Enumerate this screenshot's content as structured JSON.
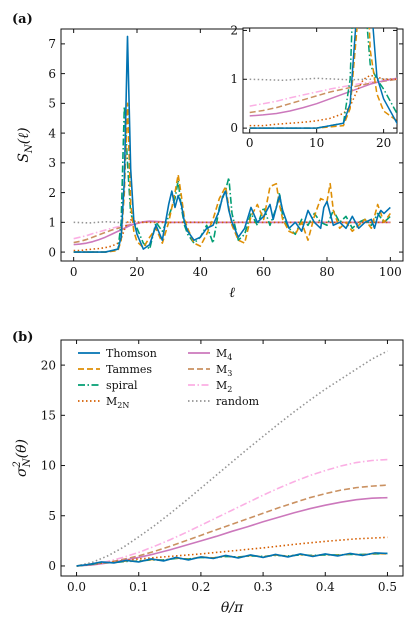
{
  "chart_data": [
    {
      "panel": "(a)",
      "type": "line",
      "xlabel": "ℓ",
      "ylabel": "S_N(ℓ)",
      "xlim": [
        -4,
        104
      ],
      "ylim": [
        -0.3,
        7.5
      ],
      "xticks": [
        "0",
        "20",
        "40",
        "60",
        "80",
        "100"
      ],
      "yticks": [
        "0",
        "1",
        "2",
        "3",
        "4",
        "5",
        "6",
        "7"
      ],
      "series": [
        {
          "name": "Thomson",
          "color": "#0173b2",
          "style": "solid",
          "x": [
            0,
            5,
            10,
            14,
            15,
            16,
            17,
            18,
            19,
            20,
            22,
            24,
            26,
            28,
            30,
            31,
            32,
            33,
            34,
            35,
            36,
            38,
            40,
            42,
            44,
            46,
            47,
            48,
            49,
            50,
            52,
            54,
            56,
            58,
            60,
            62,
            63,
            64,
            65,
            66,
            68,
            70,
            72,
            74,
            76,
            78,
            79,
            80,
            81,
            82,
            84,
            86,
            88,
            90,
            92,
            94,
            95,
            96,
            97,
            98,
            100
          ],
          "y": [
            0,
            0,
            0,
            0.1,
            0.5,
            2.4,
            7.25,
            2.8,
            1.05,
            0.6,
            0.1,
            0.25,
            0.9,
            0.4,
            1.6,
            2.05,
            1.5,
            1.9,
            1.6,
            1.0,
            0.7,
            0.4,
            0.5,
            0.8,
            0.9,
            1.4,
            1.85,
            2.05,
            1.4,
            1.0,
            0.5,
            0.8,
            1.5,
            1.0,
            1.2,
            1.6,
            1.1,
            1.5,
            1.9,
            1.4,
            0.8,
            1.0,
            0.7,
            1.4,
            1.0,
            0.8,
            1.5,
            1.7,
            1.3,
            0.9,
            1.0,
            0.8,
            1.2,
            0.8,
            1.0,
            1.1,
            0.8,
            1.2,
            1.4,
            1.3,
            1.5
          ]
        },
        {
          "name": "Tammes",
          "color": "#de8f05",
          "style": "dashed",
          "x": [
            0,
            5,
            10,
            14,
            15,
            16,
            17,
            18,
            19,
            20,
            22,
            24,
            26,
            28,
            30,
            32,
            33,
            34,
            35,
            36,
            38,
            40,
            42,
            44,
            46,
            48,
            49,
            50,
            52,
            54,
            56,
            58,
            60,
            62,
            64,
            65,
            66,
            68,
            70,
            72,
            74,
            76,
            78,
            80,
            81,
            82,
            84,
            86,
            88,
            90,
            92,
            94,
            96,
            98,
            100
          ],
          "y": [
            0,
            0,
            0,
            0.05,
            0.4,
            2.0,
            5.0,
            1.6,
            0.7,
            0.35,
            0.15,
            0.5,
            0.8,
            0.3,
            1.0,
            2.0,
            2.6,
            1.9,
            1.1,
            0.8,
            0.3,
            0.2,
            0.6,
            1.1,
            1.8,
            2.2,
            1.5,
            0.9,
            0.4,
            0.3,
            1.2,
            1.6,
            1.1,
            2.2,
            2.3,
            1.6,
            1.1,
            0.7,
            0.6,
            1.0,
            0.4,
            1.2,
            1.8,
            1.7,
            2.3,
            1.4,
            0.8,
            1.0,
            0.7,
            0.9,
            1.1,
            0.8,
            1.6,
            1.0,
            1.3
          ]
        },
        {
          "name": "spiral",
          "color": "#029e73",
          "style": "dashdot",
          "x": [
            0,
            5,
            10,
            14,
            15,
            16,
            17,
            18,
            19,
            20,
            22,
            24,
            26,
            28,
            30,
            32,
            33,
            34,
            35,
            36,
            38,
            40,
            42,
            44,
            46,
            48,
            49,
            50,
            52,
            54,
            56,
            58,
            60,
            62,
            64,
            65,
            66,
            68,
            70,
            72,
            74,
            76,
            78,
            80,
            82,
            84,
            86,
            88,
            90,
            92,
            94,
            96,
            98,
            100
          ],
          "y": [
            0,
            0,
            0,
            0.1,
            1.0,
            4.9,
            3.0,
            1.3,
            1.0,
            0.8,
            0.3,
            0.1,
            1.0,
            0.7,
            1.2,
            1.8,
            2.4,
            1.5,
            0.9,
            0.6,
            0.3,
            0.5,
            0.9,
            0.3,
            1.5,
            2.1,
            2.5,
            1.3,
            0.4,
            0.6,
            1.3,
            0.9,
            1.5,
            0.9,
            1.5,
            2.0,
            1.2,
            0.8,
            0.6,
            1.1,
            0.9,
            1.3,
            1.0,
            0.9,
            1.4,
            1.0,
            1.2,
            0.8,
            1.0,
            1.1,
            0.9,
            1.3,
            1.0,
            1.2
          ]
        },
        {
          "name": "M_2N",
          "color": "#d55e00",
          "style": "dotted",
          "x": [
            0,
            2,
            4,
            6,
            8,
            10,
            12,
            14,
            15,
            16,
            17,
            18,
            19,
            20,
            22,
            24,
            26,
            28,
            30,
            35,
            40,
            50,
            60,
            70,
            80,
            90,
            100
          ],
          "y": [
            0.05,
            0.05,
            0.08,
            0.1,
            0.12,
            0.15,
            0.2,
            0.3,
            0.45,
            0.75,
            1.0,
            1.08,
            1.05,
            1.0,
            1.0,
            1.0,
            1.0,
            1.0,
            1.0,
            1.0,
            1.0,
            1.0,
            1.0,
            1.0,
            1.0,
            1.0,
            1.0
          ]
        },
        {
          "name": "M_4",
          "color": "#cc78bc",
          "style": "solid",
          "x": [
            0,
            2,
            4,
            6,
            8,
            10,
            12,
            14,
            16,
            18,
            20,
            22,
            24,
            26,
            28,
            30,
            35,
            40,
            50,
            60,
            70,
            80,
            90,
            100
          ],
          "y": [
            0.25,
            0.27,
            0.3,
            0.35,
            0.42,
            0.5,
            0.6,
            0.7,
            0.8,
            0.9,
            0.97,
            1.02,
            1.04,
            1.03,
            1.02,
            1.0,
            1.0,
            1.0,
            1.0,
            1.0,
            1.0,
            1.0,
            1.0,
            1.0
          ]
        },
        {
          "name": "M_3",
          "color": "#ca9161",
          "style": "dashed",
          "x": [
            0,
            2,
            4,
            6,
            8,
            10,
            12,
            14,
            16,
            18,
            20,
            22,
            24,
            26,
            28,
            30,
            35,
            40,
            50,
            60,
            70,
            80,
            90,
            100
          ],
          "y": [
            0.32,
            0.36,
            0.42,
            0.5,
            0.58,
            0.66,
            0.74,
            0.8,
            0.86,
            0.92,
            0.96,
            1.0,
            1.02,
            1.02,
            1.01,
            1.0,
            1.0,
            1.0,
            1.0,
            1.0,
            1.0,
            1.0,
            1.0,
            1.0
          ]
        },
        {
          "name": "M_2",
          "color": "#fbafe4",
          "style": "dashdot",
          "x": [
            0,
            2,
            4,
            6,
            8,
            10,
            12,
            14,
            16,
            18,
            20,
            22,
            24,
            26,
            28,
            30,
            35,
            40,
            50,
            60,
            70,
            80,
            90,
            100
          ],
          "y": [
            0.45,
            0.5,
            0.55,
            0.62,
            0.68,
            0.74,
            0.8,
            0.85,
            0.9,
            0.94,
            0.97,
            1.0,
            1.01,
            1.01,
            1.0,
            1.0,
            1.0,
            1.0,
            1.0,
            1.0,
            1.0,
            1.0,
            1.0,
            1.0
          ]
        },
        {
          "name": "random",
          "color": "#949494",
          "style": "dotted",
          "x": [
            0,
            5,
            10,
            15,
            20,
            25,
            30,
            35,
            40,
            45,
            50,
            55,
            60,
            65,
            70,
            75,
            80,
            85,
            90,
            95,
            100
          ],
          "y": [
            1.0,
            0.98,
            1.02,
            0.99,
            1.01,
            1.0,
            0.99,
            1.01,
            1.0,
            0.99,
            1.0,
            1.01,
            1.0,
            0.99,
            1.0,
            1.01,
            1.0,
            0.99,
            1.0,
            1.0,
            1.0
          ]
        }
      ],
      "inset": {
        "xlim": [
          -1,
          22
        ],
        "ylim": [
          -0.1,
          2.05
        ],
        "xticks": [
          "0",
          "10",
          "20"
        ],
        "yticks": [
          "0",
          "1",
          "2"
        ]
      }
    },
    {
      "panel": "(b)",
      "type": "line",
      "xlabel": "θ/π",
      "ylabel": "σ²_N(θ)",
      "xlim": [
        -0.025,
        0.525
      ],
      "ylim": [
        -1.0,
        22.5
      ],
      "xticks": [
        "0.0",
        "0.1",
        "0.2",
        "0.3",
        "0.4",
        "0.5"
      ],
      "yticks": [
        "0",
        "5",
        "10",
        "15",
        "20"
      ],
      "legend": "top-left",
      "series": [
        {
          "name": "Thomson",
          "color": "#0173b2",
          "style": "solid",
          "x": [
            0,
            0.02,
            0.04,
            0.06,
            0.08,
            0.1,
            0.12,
            0.14,
            0.16,
            0.18,
            0.2,
            0.22,
            0.24,
            0.26,
            0.28,
            0.3,
            0.32,
            0.34,
            0.36,
            0.38,
            0.4,
            0.42,
            0.44,
            0.46,
            0.48,
            0.5
          ],
          "y": [
            0,
            0.15,
            0.4,
            0.3,
            0.55,
            0.4,
            0.7,
            0.5,
            0.85,
            0.6,
            0.9,
            0.75,
            1.05,
            0.8,
            1.1,
            0.85,
            1.15,
            0.9,
            1.2,
            0.95,
            1.2,
            1.0,
            1.25,
            1.05,
            1.3,
            1.25
          ]
        },
        {
          "name": "Tammes",
          "color": "#de8f05",
          "style": "dashed",
          "x": [
            0,
            0.02,
            0.04,
            0.06,
            0.08,
            0.1,
            0.12,
            0.14,
            0.16,
            0.18,
            0.2,
            0.22,
            0.24,
            0.26,
            0.28,
            0.3,
            0.32,
            0.34,
            0.36,
            0.38,
            0.4,
            0.42,
            0.44,
            0.46,
            0.48,
            0.5
          ],
          "y": [
            0,
            0.15,
            0.35,
            0.35,
            0.5,
            0.45,
            0.65,
            0.55,
            0.8,
            0.65,
            0.9,
            0.8,
            1.0,
            0.85,
            1.05,
            0.9,
            1.1,
            0.95,
            1.15,
            1.0,
            1.15,
            1.05,
            1.2,
            1.1,
            1.25,
            1.2
          ]
        },
        {
          "name": "spiral",
          "color": "#029e73",
          "style": "dashdot",
          "x": [
            0,
            0.02,
            0.04,
            0.06,
            0.08,
            0.1,
            0.12,
            0.14,
            0.16,
            0.18,
            0.2,
            0.22,
            0.24,
            0.26,
            0.28,
            0.3,
            0.32,
            0.34,
            0.36,
            0.38,
            0.4,
            0.42,
            0.44,
            0.46,
            0.48,
            0.5
          ],
          "y": [
            0,
            0.12,
            0.32,
            0.35,
            0.45,
            0.5,
            0.6,
            0.6,
            0.75,
            0.7,
            0.85,
            0.8,
            0.95,
            0.9,
            1.0,
            0.95,
            1.05,
            1.0,
            1.1,
            1.05,
            1.1,
            1.1,
            1.15,
            1.15,
            1.2,
            1.25
          ]
        },
        {
          "name": "M_2N",
          "color": "#d55e00",
          "style": "dotted",
          "x": [
            0,
            0.05,
            0.1,
            0.15,
            0.2,
            0.25,
            0.3,
            0.35,
            0.4,
            0.45,
            0.5
          ],
          "y": [
            0,
            0.35,
            0.7,
            0.95,
            1.2,
            1.5,
            1.8,
            2.15,
            2.45,
            2.7,
            2.85
          ]
        },
        {
          "name": "M_4",
          "color": "#cc78bc",
          "style": "solid",
          "x": [
            0,
            0.025,
            0.05,
            0.075,
            0.1,
            0.125,
            0.15,
            0.175,
            0.2,
            0.225,
            0.25,
            0.275,
            0.3,
            0.325,
            0.35,
            0.375,
            0.4,
            0.425,
            0.45,
            0.475,
            0.5
          ],
          "y": [
            0,
            0.1,
            0.3,
            0.55,
            0.85,
            1.2,
            1.6,
            2.05,
            2.5,
            2.95,
            3.45,
            3.9,
            4.4,
            4.85,
            5.3,
            5.7,
            6.05,
            6.35,
            6.6,
            6.75,
            6.8
          ]
        },
        {
          "name": "M_3",
          "color": "#ca9161",
          "style": "dashed",
          "x": [
            0,
            0.025,
            0.05,
            0.075,
            0.1,
            0.125,
            0.15,
            0.175,
            0.2,
            0.225,
            0.25,
            0.275,
            0.3,
            0.325,
            0.35,
            0.375,
            0.4,
            0.425,
            0.45,
            0.475,
            0.5
          ],
          "y": [
            0,
            0.12,
            0.35,
            0.65,
            1.0,
            1.45,
            1.95,
            2.5,
            3.05,
            3.6,
            4.15,
            4.7,
            5.25,
            5.8,
            6.3,
            6.8,
            7.2,
            7.55,
            7.8,
            7.95,
            8.05
          ]
        },
        {
          "name": "M_2",
          "color": "#fbafe4",
          "style": "dashdot",
          "x": [
            0,
            0.025,
            0.05,
            0.075,
            0.1,
            0.125,
            0.15,
            0.175,
            0.2,
            0.225,
            0.25,
            0.275,
            0.3,
            0.325,
            0.35,
            0.375,
            0.4,
            0.425,
            0.45,
            0.475,
            0.5
          ],
          "y": [
            0,
            0.15,
            0.45,
            0.85,
            1.35,
            1.95,
            2.6,
            3.3,
            4.05,
            4.8,
            5.55,
            6.3,
            7.05,
            7.75,
            8.4,
            9.0,
            9.5,
            9.95,
            10.3,
            10.5,
            10.6
          ]
        },
        {
          "name": "random",
          "color": "#949494",
          "style": "dotted",
          "x": [
            0,
            0.025,
            0.05,
            0.075,
            0.1,
            0.125,
            0.15,
            0.175,
            0.2,
            0.225,
            0.25,
            0.275,
            0.3,
            0.325,
            0.35,
            0.375,
            0.4,
            0.425,
            0.45,
            0.475,
            0.5
          ],
          "y": [
            0,
            0.35,
            1.0,
            1.85,
            2.9,
            4.0,
            5.2,
            6.45,
            7.75,
            9.05,
            10.35,
            11.65,
            12.9,
            14.15,
            15.35,
            16.5,
            17.6,
            18.6,
            19.6,
            20.6,
            21.4
          ]
        }
      ]
    }
  ],
  "legend_labels": {
    "Thomson": "Thomson",
    "Tammes": "Tammes",
    "spiral": "spiral",
    "M_2N": "M2N",
    "M_4": "M4",
    "M_3": "M3",
    "M_2": "M2",
    "random": "random"
  }
}
